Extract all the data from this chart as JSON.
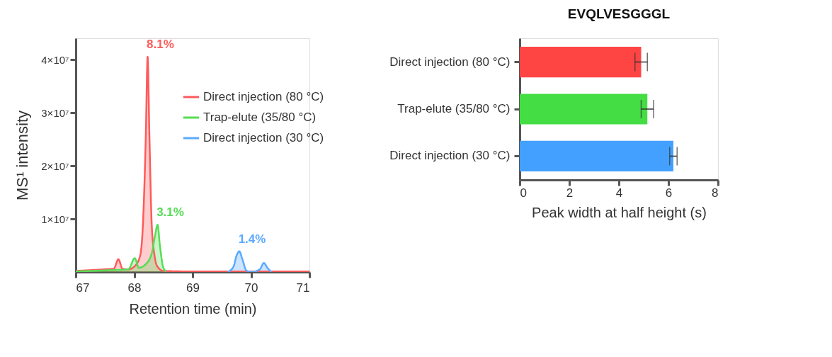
{
  "chart_data": [
    {
      "type": "area",
      "xlabel": "Retention time (min)",
      "ylabel": "MS¹ intensity",
      "xlim": [
        67,
        71
      ],
      "xticks": [
        67,
        68,
        69,
        70,
        71
      ],
      "ylim": [
        0,
        44000000
      ],
      "yticks": [
        {
          "value": 10000000,
          "label": "1×10⁷"
        },
        {
          "value": 20000000,
          "label": "2×10⁷"
        },
        {
          "value": 30000000,
          "label": "3×10⁷"
        },
        {
          "value": 40000000,
          "label": "4×10⁷"
        }
      ],
      "grid": false,
      "legend": "top right",
      "marker": "none",
      "series": [
        {
          "name": "Direct injection (80 °C)",
          "color": "#ff5a5a",
          "x": [
            67,
            67.5,
            67.65,
            67.73,
            67.8,
            67.9,
            68.0,
            68.1,
            68.15,
            68.2,
            68.23,
            68.26,
            68.3,
            68.35,
            68.4,
            68.5,
            69,
            70,
            71
          ],
          "values": [
            200000,
            500000,
            600000,
            2400000,
            600000,
            500000,
            1000000,
            3000000,
            9000000,
            26000000,
            40500000,
            26000000,
            9000000,
            3000000,
            1000000,
            200000,
            100000,
            100000,
            100000
          ]
        },
        {
          "name": "Trap-elute (35/80 °C)",
          "color": "#55dd55",
          "x": [
            67,
            67.5,
            67.9,
            68.01,
            68.08,
            68.2,
            68.3,
            68.36,
            68.4,
            68.44,
            68.5,
            68.55
          ],
          "values": [
            100000,
            300000,
            500000,
            2600000,
            800000,
            1500000,
            3500000,
            7000000,
            8900000,
            5000000,
            800000,
            100000
          ]
        },
        {
          "name": "Direct injection (30 °C)",
          "color": "#5aaaff",
          "x": [
            69.6,
            69.7,
            69.75,
            69.8,
            69.85,
            69.92,
            70.0,
            70.15,
            70.22,
            70.28,
            70.35
          ],
          "values": [
            0,
            1000000,
            3000000,
            3900000,
            2500000,
            300000,
            0,
            500000,
            1700000,
            800000,
            0
          ]
        }
      ],
      "annotations": [
        {
          "text": "8.1%",
          "x": 68.23,
          "y": 40500000
        },
        {
          "text": "3.1%",
          "x": 68.4,
          "y": 8900000
        },
        {
          "text": "1.4%",
          "x": 69.8,
          "y": 3900000
        }
      ]
    },
    {
      "type": "bar",
      "orientation": "horizontal",
      "title": "EVQLVESGGGL",
      "xlabel": "Peak width at half height (s)",
      "categories": [
        "Direct injection (80 °C)",
        "Trap-elute (35/80 °C)",
        "Direct injection (30 °C)"
      ],
      "values": [
        4.9,
        5.15,
        6.2
      ],
      "errors": [
        0.25,
        0.25,
        0.15
      ],
      "colors": [
        "#ff4444",
        "#44dd44",
        "#44a0ff"
      ],
      "xlim": [
        0,
        8
      ],
      "xticks": [
        0,
        2,
        4,
        6,
        8
      ],
      "grid": false
    }
  ]
}
